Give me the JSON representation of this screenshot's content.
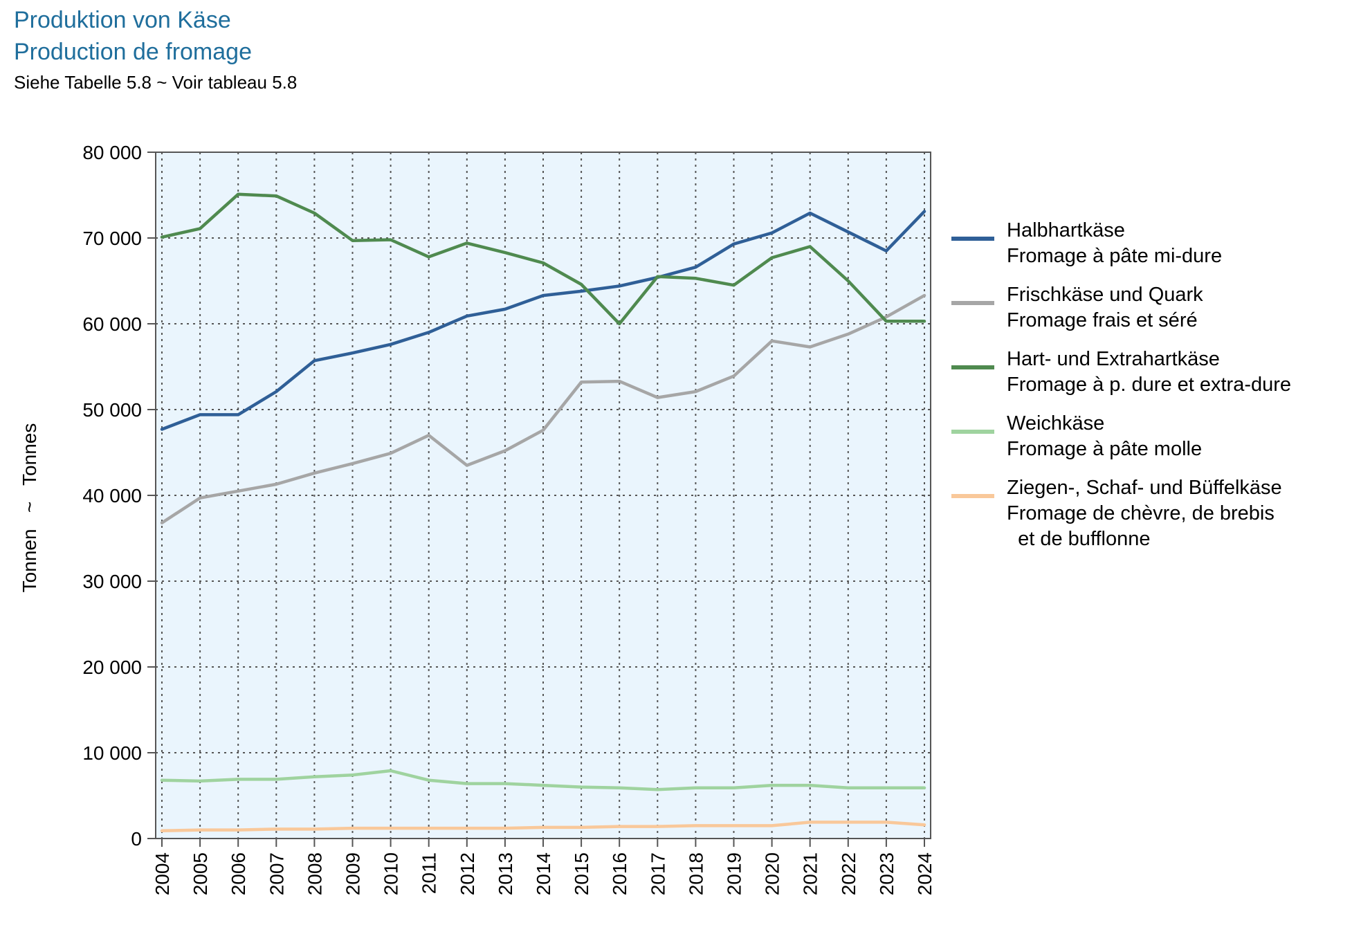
{
  "header": {
    "title_de": "Produktion von Käse",
    "title_fr": "Production de fromage",
    "subtitle": "Siehe Tabelle 5.8   ~   Voir tableau 5.8"
  },
  "colors": {
    "plot_background": "#eaf5fd",
    "grid": "#555555",
    "axis": "#555555"
  },
  "chart_data": {
    "type": "line",
    "title": "Produktion von Käse / Production de fromage",
    "ylabel": "Tonnen   ~   Tonnes",
    "xlabel": "",
    "ylim": [
      0,
      80000
    ],
    "yticks": [
      0,
      10000,
      20000,
      30000,
      40000,
      50000,
      60000,
      70000,
      80000
    ],
    "ytick_labels": [
      "0",
      "10 000",
      "20 000",
      "30 000",
      "40 000",
      "50 000",
      "60 000",
      "70 000",
      "80 000"
    ],
    "x": [
      "2004",
      "2005",
      "2006",
      "2007",
      "2008",
      "2009",
      "2010",
      "2011",
      "2012",
      "2013",
      "2014",
      "2015",
      "2016",
      "2017",
      "2018",
      "2019",
      "2020",
      "2021",
      "2022",
      "2023",
      "2024"
    ],
    "grid": true,
    "legend_position": "right",
    "series": [
      {
        "name": "Halbhartkäse\nFromage à pâte mi-dure",
        "color": "#2f5f97",
        "values": [
          47700,
          49400,
          49400,
          52100,
          55700,
          56600,
          57600,
          59000,
          60900,
          61700,
          63300,
          63800,
          64400,
          65400,
          66600,
          69300,
          70600,
          72900,
          70700,
          68500,
          73100
        ]
      },
      {
        "name": "Frischkäse und Quark\nFromage frais et séré",
        "color": "#a6a6a6",
        "values": [
          36800,
          39700,
          40500,
          41300,
          42600,
          43700,
          44900,
          47000,
          43500,
          45200,
          47600,
          53200,
          53300,
          51400,
          52100,
          53900,
          58000,
          57300,
          58800,
          60800,
          63300
        ]
      },
      {
        "name": "Hart- und Extrahartkäse\nFromage à p. dure et extra-dure",
        "color": "#4f8a4f",
        "values": [
          70100,
          71100,
          75100,
          74900,
          72900,
          69700,
          69800,
          67800,
          69400,
          68300,
          67100,
          64600,
          60000,
          65500,
          65300,
          64500,
          67700,
          69000,
          65000,
          60300,
          60300
        ]
      },
      {
        "name": "Weichkäse\nFromage à pâte molle",
        "color": "#9fd39f",
        "values": [
          6800,
          6700,
          6900,
          6900,
          7200,
          7400,
          7900,
          6800,
          6400,
          6400,
          6200,
          6000,
          5900,
          5700,
          5900,
          5900,
          6200,
          6200,
          5900,
          5900,
          5900
        ]
      },
      {
        "name": "Ziegen-, Schaf- und Büffelkäse\nFromage de chèvre, de brebis\n  et de bufflonne",
        "color": "#f9c89a",
        "values": [
          900,
          1000,
          1000,
          1100,
          1100,
          1200,
          1200,
          1200,
          1200,
          1200,
          1300,
          1300,
          1400,
          1400,
          1500,
          1500,
          1500,
          1900,
          1900,
          1900,
          1600
        ]
      }
    ]
  }
}
